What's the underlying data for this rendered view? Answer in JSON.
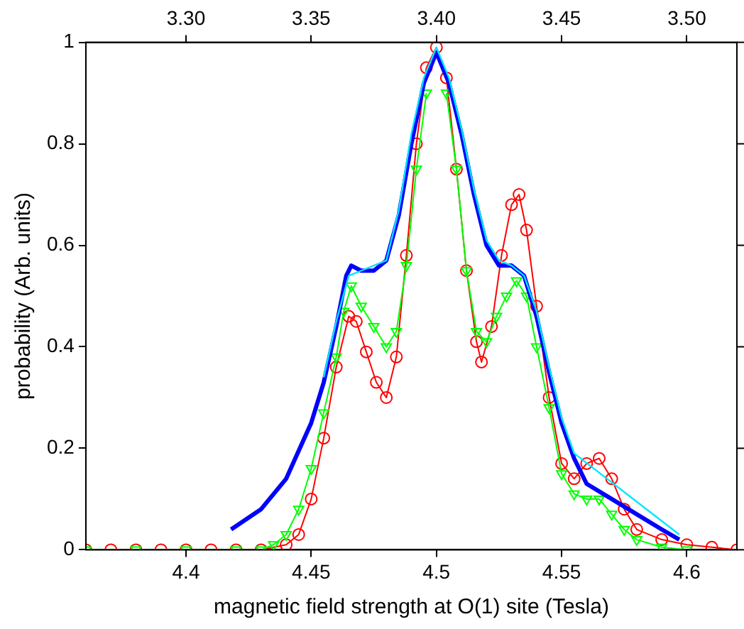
{
  "chart_data": {
    "type": "line",
    "xlabel": "magnetic field strength at O(1) site (Tesla)",
    "ylabel": "probability (Arb. units)",
    "xlim": [
      4.36,
      4.62
    ],
    "xticks": [
      4.4,
      4.45,
      4.5,
      4.55,
      4.6
    ],
    "x2lim": [
      3.26,
      3.52
    ],
    "x2ticks": [
      {
        "value": 3.3,
        "label": "3.30"
      },
      {
        "value": 3.35,
        "label": "3.35"
      },
      {
        "value": 3.4,
        "label": "3.40"
      },
      {
        "value": 3.45,
        "label": "3.45"
      },
      {
        "value": 3.5,
        "label": "3.50"
      }
    ],
    "ylim": [
      0,
      1
    ],
    "yticks": [
      0,
      0.2,
      0.4,
      0.6,
      0.8,
      1
    ],
    "grid": false,
    "legend": false,
    "line_style": "solid",
    "series": [
      {
        "color": "#00e5ff",
        "marker": "none",
        "x": [
          4.455,
          4.46,
          4.465,
          4.47,
          4.48,
          4.485,
          4.49,
          4.495,
          4.5,
          4.505,
          4.51,
          4.515,
          4.52,
          4.525,
          4.53,
          4.535,
          4.54,
          4.545,
          4.55,
          4.555,
          4.597
        ],
        "values": [
          0.34,
          0.45,
          0.54,
          0.55,
          0.57,
          0.67,
          0.82,
          0.93,
          0.99,
          0.93,
          0.83,
          0.71,
          0.61,
          0.57,
          0.56,
          0.54,
          0.47,
          0.36,
          0.26,
          0.19,
          0.03
        ]
      },
      {
        "color": "#0000ff",
        "marker": "none",
        "x": [
          4.418,
          4.43,
          4.44,
          4.45,
          4.455,
          4.46,
          4.464,
          4.466,
          4.47,
          4.475,
          4.48,
          4.485,
          4.49,
          4.495,
          4.5,
          4.505,
          4.51,
          4.515,
          4.52,
          4.525,
          4.53,
          4.535,
          4.54,
          4.545,
          4.55,
          4.555,
          4.56,
          4.57,
          4.58,
          4.59,
          4.597
        ],
        "values": [
          0.04,
          0.08,
          0.14,
          0.25,
          0.33,
          0.44,
          0.54,
          0.56,
          0.55,
          0.55,
          0.57,
          0.66,
          0.8,
          0.92,
          0.98,
          0.92,
          0.82,
          0.7,
          0.6,
          0.56,
          0.56,
          0.54,
          0.46,
          0.35,
          0.25,
          0.18,
          0.13,
          0.1,
          0.07,
          0.04,
          0.02
        ]
      },
      {
        "color": "#00ff00",
        "marker": "triangle",
        "x": [
          4.36,
          4.38,
          4.4,
          4.42,
          4.43,
          4.435,
          4.44,
          4.445,
          4.45,
          4.455,
          4.46,
          4.463,
          4.466,
          4.47,
          4.475,
          4.48,
          4.484,
          4.488,
          4.492,
          4.496,
          4.5,
          4.504,
          4.508,
          4.512,
          4.516,
          4.52,
          4.524,
          4.528,
          4.532,
          4.536,
          4.54,
          4.545,
          4.55,
          4.555,
          4.56,
          4.565,
          4.57,
          4.575,
          4.58,
          4.59,
          4.6
        ],
        "values": [
          0,
          0,
          0,
          0,
          0,
          0.01,
          0.03,
          0.08,
          0.16,
          0.27,
          0.38,
          0.47,
          0.52,
          0.48,
          0.44,
          0.4,
          0.43,
          0.56,
          0.75,
          0.9,
          null,
          0.9,
          0.75,
          0.55,
          0.43,
          0.41,
          0.46,
          0.5,
          0.53,
          0.5,
          0.4,
          0.28,
          0.15,
          0.11,
          0.1,
          0.1,
          0.07,
          0.04,
          0.02,
          0.005,
          0
        ]
      },
      {
        "color": "#ff0000",
        "marker": "circle",
        "x": [
          4.36,
          4.37,
          4.38,
          4.39,
          4.4,
          4.41,
          4.42,
          4.43,
          4.44,
          4.445,
          4.45,
          4.455,
          4.46,
          4.465,
          4.468,
          4.472,
          4.476,
          4.48,
          4.484,
          4.488,
          4.492,
          4.496,
          4.5,
          4.504,
          4.508,
          4.512,
          4.516,
          4.518,
          4.522,
          4.526,
          4.53,
          4.533,
          4.536,
          4.54,
          4.545,
          4.55,
          4.555,
          4.56,
          4.565,
          4.57,
          4.575,
          4.58,
          4.59,
          4.6,
          4.61,
          4.62
        ],
        "values": [
          0,
          0,
          0,
          0,
          0,
          0,
          0,
          0,
          0.01,
          0.03,
          0.1,
          0.22,
          0.36,
          0.46,
          0.45,
          0.39,
          0.33,
          0.3,
          0.38,
          0.58,
          0.8,
          0.95,
          0.99,
          0.93,
          0.75,
          0.55,
          0.41,
          0.37,
          0.44,
          0.58,
          0.68,
          0.7,
          0.63,
          0.48,
          0.3,
          0.17,
          0.14,
          0.17,
          0.18,
          0.14,
          0.08,
          0.04,
          0.02,
          0.01,
          0.005,
          0
        ]
      }
    ]
  }
}
